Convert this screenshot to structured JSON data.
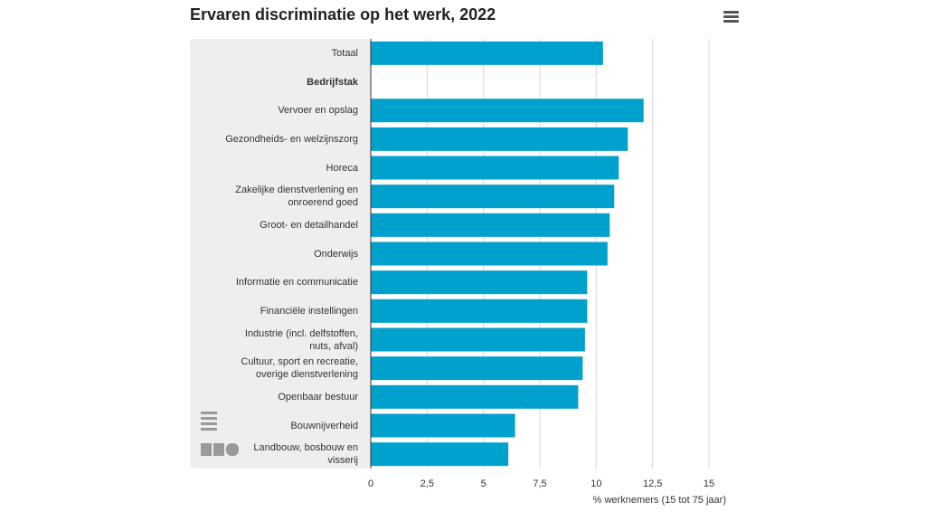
{
  "chart_data": {
    "type": "hbar",
    "title": "Ervaren discriminatie op het werk, 2022",
    "x_label": "% werknemers (15 tot 75 jaar)",
    "categories": [
      "Totaal",
      "Bedrijfstak",
      "Vervoer en opslag",
      "Gezondheids- en welzijnszorg",
      "Horeca",
      "Zakelijke dienstverlening en onroerend goed",
      "Groot- en detailhandel",
      "Onderwijs",
      "Informatie en communicatie",
      "Financiële instellingen",
      "Industrie (incl. delfstoffen, nuts, afval)",
      "Cultuur, sport en recreatie, overige dienstverlening",
      "Openbaar bestuur",
      "Bouwnijverheid",
      "Landbouw, bosbouw en visserij"
    ],
    "bold_categories": [
      "Bedrijfstak"
    ],
    "values": [
      10.3,
      null,
      12.1,
      11.4,
      11.0,
      10.8,
      10.6,
      10.5,
      9.6,
      9.6,
      9.5,
      9.4,
      9.2,
      6.4,
      6.1
    ],
    "color": "#00a1cd",
    "xlim": [
      0,
      15
    ],
    "xticks": [
      0,
      {
        "value": 2.5,
        "label": "2,5"
      },
      5,
      {
        "value": 7.5,
        "label": "7,5"
      },
      10,
      {
        "value": 12.5,
        "label": "12,5"
      },
      15
    ],
    "grid": true
  }
}
